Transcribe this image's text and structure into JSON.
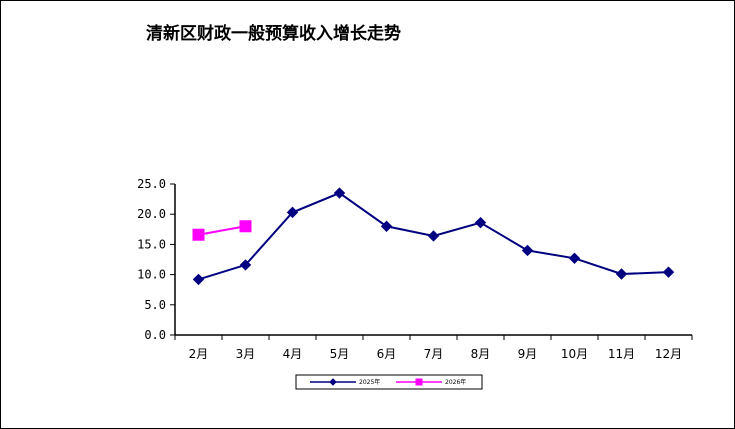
{
  "chart_data": {
    "type": "line",
    "title": "清新区财政一般预算收入增长走势",
    "categories": [
      "2月",
      "3月",
      "4月",
      "5月",
      "6月",
      "7月",
      "8月",
      "9月",
      "10月",
      "11月",
      "12月"
    ],
    "yticks": [
      "0.0",
      "5.0",
      "10.0",
      "15.0",
      "20.0",
      "25.0"
    ],
    "ylim": [
      0,
      25
    ],
    "grid": false,
    "legend_position": "bottom",
    "series": [
      {
        "name": "2025年",
        "color": "#000080",
        "marker": "diamond",
        "values": [
          9.2,
          11.6,
          20.3,
          23.5,
          18.0,
          16.4,
          18.6,
          14.0,
          12.7,
          10.1,
          10.4
        ]
      },
      {
        "name": "2026年",
        "color": "#ff00ff",
        "marker": "square",
        "values": [
          16.6,
          18.0,
          null,
          null,
          null,
          null,
          null,
          null,
          null,
          null,
          null
        ]
      }
    ]
  }
}
